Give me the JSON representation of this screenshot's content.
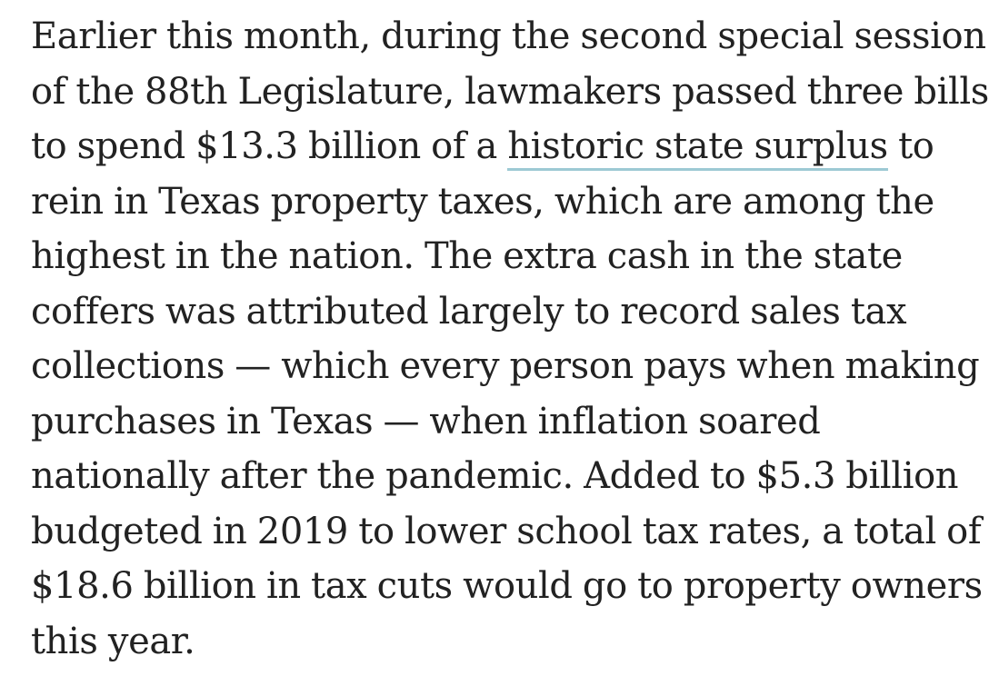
{
  "article": {
    "paragraph": {
      "lines": [
        "Earlier this month, during the second special session",
        "of the 88th Legislature, lawmakers passed three bills",
        "to spend $13.3 billion of a",
        "to",
        "rein in Texas property taxes, which are among the",
        "highest in the nation. The extra cash in the state",
        "coffers was attributed largely to record sales tax",
        "collections — which every person pays when making",
        "purchases in Texas — when inflation soared",
        "nationally after the pandemic. Added to $5.3 billion",
        "budgeted in 2019 to lower school tax rates, a total of",
        "$18.6 billion in tax cuts would go to property owners",
        "this year."
      ],
      "link_text": "historic state surplus"
    }
  },
  "colors": {
    "text": "#222222",
    "link_underline": "#9dc9d4",
    "background": "#ffffff"
  }
}
